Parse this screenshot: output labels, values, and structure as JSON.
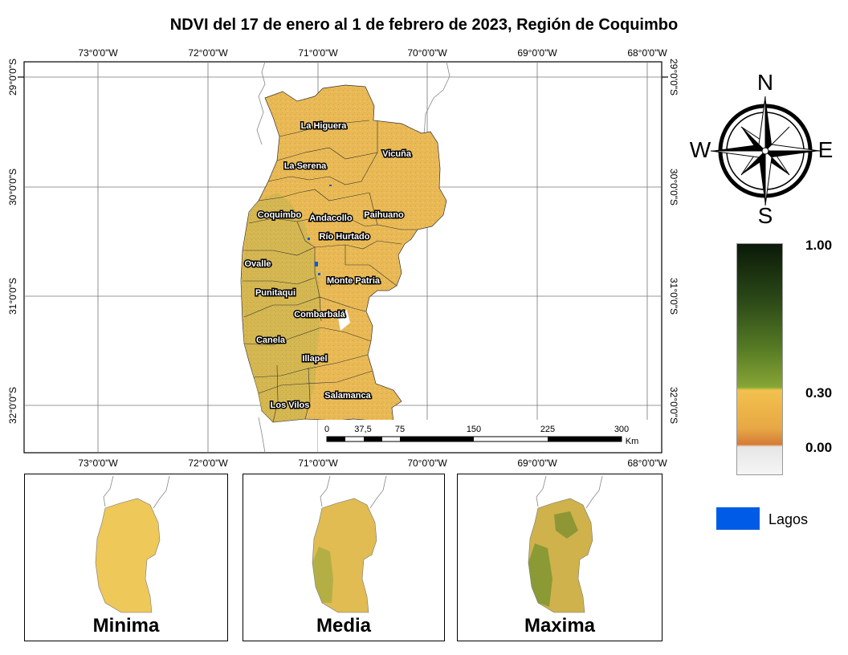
{
  "title": "NDVI del 17 de enero al 1 de febrero de 2023, Región de Coquimbo",
  "main_map": {
    "longitude_labels": [
      "73°0'0\"W",
      "72°0'0\"W",
      "71°0'0\"W",
      "70°0'0\"W",
      "69°0'0\"W",
      "68°0'0\"W"
    ],
    "latitude_labels": [
      "29°0'0\"S",
      "30°0'0\"S",
      "31°0'0\"S",
      "32°0'0\"S"
    ],
    "communes": [
      "La Higuera",
      "Vicuña",
      "La Serena",
      "Coquimbo",
      "Andacollo",
      "Paihuano",
      "Río Hurtado",
      "Ovalle",
      "Monte Patria",
      "Punitaqui",
      "Combarbalá",
      "Canela",
      "Illapel",
      "Salamanca",
      "Los Vilos"
    ],
    "scale_bar": {
      "ticks": [
        "0",
        "37,5",
        "75",
        "150",
        "225",
        "300"
      ],
      "unit": "Km"
    }
  },
  "north_arrow": {
    "n": "N",
    "s": "S",
    "e": "E",
    "w": "W"
  },
  "ndvi_legend": {
    "max_label": "1.00",
    "mid_label": "0.30",
    "min_label": "0.00",
    "colors": {
      "high": "#0a1a08",
      "green": "#7a9a2e",
      "yellow": "#f2c14e",
      "orange": "#d77a30",
      "low": "#f5f5f5"
    }
  },
  "lakes_legend": {
    "label": "Lagos",
    "color": "#005ce6"
  },
  "insets": [
    {
      "label": "Minima"
    },
    {
      "label": "Media"
    },
    {
      "label": "Maxima"
    }
  ]
}
